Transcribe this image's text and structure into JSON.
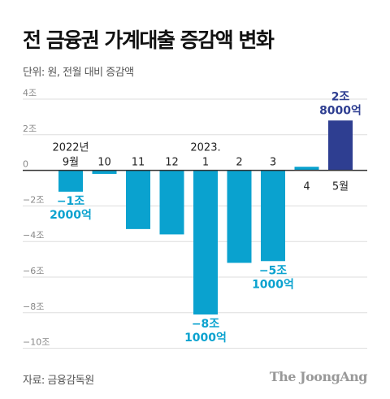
{
  "title": "전 금융권 가계대출 증감액 변화",
  "unit_label": "단위: 원, 전월 대비 증감액",
  "source": "자료: 금융감독원",
  "brand": "The JoongAng",
  "colors": {
    "bar": "#0AA2CF",
    "highlight": "#2E3E91",
    "grid": "#dddddd",
    "axis": "#333333"
  },
  "chart_data": {
    "type": "bar",
    "title": "전 금융권 가계대출 증감액 변화",
    "ylabel": "단위: 원, 전월 대비 증감액",
    "categories": [
      "9월",
      "10",
      "11",
      "12",
      "1",
      "2",
      "3",
      "4",
      "5월"
    ],
    "year_labels": [
      {
        "index": 0,
        "text": "2022년"
      },
      {
        "index": 4,
        "text": "2023."
      }
    ],
    "values": [
      -1.2,
      -0.2,
      -3.3,
      -3.6,
      -8.1,
      -5.2,
      -5.1,
      0.2,
      2.8
    ],
    "value_unit": "조",
    "ylim": [
      -10,
      4
    ],
    "yticks": [
      {
        "value": 4,
        "label": "4조"
      },
      {
        "value": 2,
        "label": "2조"
      },
      {
        "value": 0,
        "label": "0"
      },
      {
        "value": -2,
        "label": "−2조"
      },
      {
        "value": -4,
        "label": "−4조"
      },
      {
        "value": -6,
        "label": "−6조"
      },
      {
        "value": -8,
        "label": "−8조"
      },
      {
        "value": -10,
        "label": "−10조"
      }
    ],
    "annotations": [
      {
        "index": 0,
        "lines": [
          "−1조",
          "2000억"
        ]
      },
      {
        "index": 4,
        "lines": [
          "−8조",
          "1000억"
        ]
      },
      {
        "index": 6,
        "lines": [
          "−5조",
          "1000억"
        ]
      },
      {
        "index": 8,
        "lines": [
          "2조",
          "8000억"
        ]
      }
    ],
    "highlight_index": 8,
    "grid": true
  }
}
